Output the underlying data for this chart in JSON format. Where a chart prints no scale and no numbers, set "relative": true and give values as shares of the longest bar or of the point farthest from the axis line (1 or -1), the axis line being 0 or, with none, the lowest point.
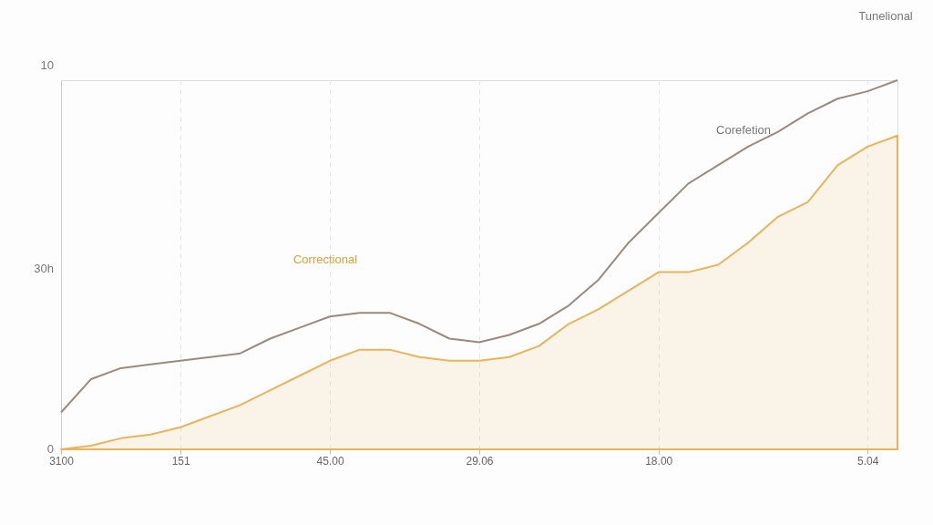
{
  "chart_data": {
    "type": "line",
    "relative": true,
    "categories": [
      "3100",
      null,
      null,
      null,
      "151",
      null,
      null,
      null,
      null,
      "45.00",
      null,
      null,
      null,
      null,
      "29.06",
      null,
      null,
      null,
      null,
      null,
      "18.00",
      null,
      null,
      null,
      null,
      null,
      null,
      "5.04",
      null
    ],
    "series": [
      {
        "color": "#9a8a7e",
        "values": [
          0.1,
          0.19,
          0.22,
          0.23,
          0.24,
          0.25,
          0.26,
          0.3,
          0.33,
          0.36,
          0.37,
          0.37,
          0.34,
          0.3,
          0.29,
          0.31,
          0.34,
          0.39,
          0.46,
          0.56,
          0.64,
          0.72,
          0.77,
          0.82,
          0.86,
          0.91,
          0.95,
          0.97,
          1.0
        ]
      },
      {
        "type": "area",
        "color": "#e8b45a",
        "values": [
          0,
          0.01,
          0.03,
          0.04,
          0.06,
          0.09,
          0.12,
          0.16,
          0.2,
          0.24,
          0.27,
          0.27,
          0.25,
          0.24,
          0.24,
          0.25,
          0.28,
          0.34,
          0.38,
          0.43,
          0.48,
          0.48,
          0.5,
          0.56,
          0.63,
          0.67,
          0.77,
          0.82,
          0.85
        ]
      }
    ],
    "annotations": [
      "10",
      "30h",
      "0",
      "Correctional",
      "Corefetion",
      "Tunelional"
    ],
    "grid": "x"
  }
}
